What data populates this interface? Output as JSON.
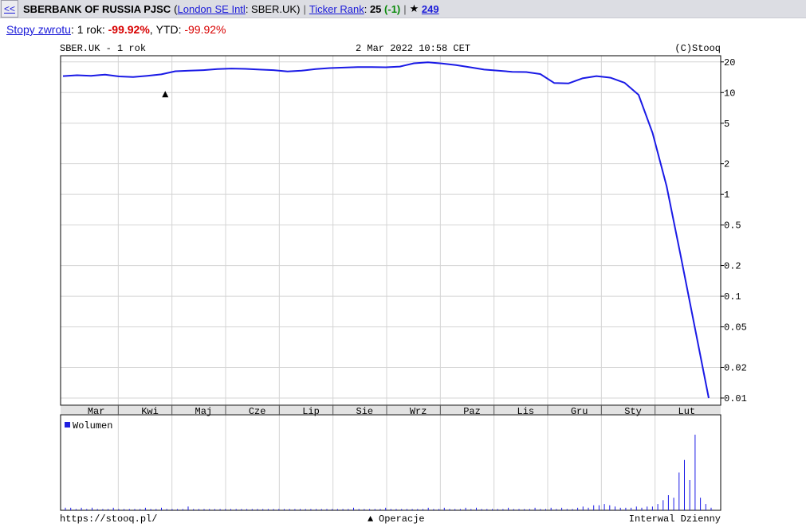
{
  "header": {
    "back_label": "<<",
    "company": "SBERBANK OF RUSSIA PJSC",
    "exchange_link": "London SE Intl",
    "ticker_suffix": ": SBER.UK)",
    "ticker_rank_link": "Ticker Rank",
    "rank_value": "25",
    "rank_change": "(-1)",
    "star": "★",
    "favorites": "249"
  },
  "returns": {
    "link": "Stopy zwrotu",
    "period_label": "1 rok:",
    "period_value": "-99.92%",
    "ytd_label": "YTD:",
    "ytd_value": "-99.92%"
  },
  "chart_data": {
    "type": "line",
    "title": "SBER.UK - 1 rok",
    "timestamp": "2 Mar 2022 10:58 CET",
    "copyright": "(C)Stooq",
    "y_scale": "log",
    "y_ticks": [
      "20",
      "10",
      "5",
      "2",
      "1",
      "0.5",
      "0.2",
      "0.1",
      "0.05",
      "0.02",
      "0.01"
    ],
    "months": [
      "Mar",
      "Kwi",
      "Maj",
      "Cze",
      "Lip",
      "Sie",
      "Wrz",
      "Paz",
      "Lis",
      "Gru",
      "Sty",
      "Lut"
    ],
    "series": [
      {
        "values": [
          14.5,
          14.8,
          14.6,
          15.0,
          14.4,
          14.2,
          14.6,
          15.1,
          16.2,
          16.4,
          16.6,
          17.0,
          17.2,
          17.1,
          16.8,
          16.6,
          16.1,
          16.4,
          17.0,
          17.4,
          17.6,
          17.8,
          17.8,
          17.7,
          18.0,
          19.4,
          19.8,
          19.3,
          18.6,
          17.7,
          16.8,
          16.4,
          16.0,
          15.9,
          15.2,
          12.4,
          12.3,
          13.8,
          14.5,
          14.0,
          12.5,
          9.5,
          4.0,
          1.2,
          0.25,
          0.05,
          0.01
        ]
      }
    ],
    "volume_label": "Wolumen",
    "volume": [
      2,
      2,
      1,
      2,
      1,
      2,
      1,
      1,
      1,
      2,
      1,
      1,
      1,
      1,
      1,
      2,
      1,
      1,
      2,
      1,
      1,
      1,
      1,
      3,
      1,
      1,
      1,
      1,
      1,
      1,
      1,
      1,
      1,
      1,
      1,
      1,
      1,
      1,
      1,
      1,
      1,
      1,
      1,
      1,
      1,
      1,
      1,
      1,
      1,
      1,
      1,
      1,
      1,
      1,
      2,
      1,
      1,
      1,
      1,
      1,
      2,
      1,
      1,
      1,
      1,
      1,
      1,
      1,
      2,
      1,
      1,
      2,
      1,
      1,
      1,
      2,
      1,
      2,
      1,
      1,
      1,
      1,
      1,
      2,
      1,
      1,
      1,
      1,
      2,
      1,
      1,
      2,
      1,
      2,
      1,
      1,
      2,
      3,
      2,
      4,
      4,
      5,
      4,
      3,
      2,
      2,
      2,
      3,
      2,
      3,
      3,
      5,
      8,
      12,
      10,
      30,
      40,
      24,
      60,
      10,
      5,
      2
    ],
    "trade_marker": "▲",
    "footer_left": "https://stooq.pl/",
    "footer_center": "Operacje",
    "footer_right": "Interwal Dzienny"
  }
}
